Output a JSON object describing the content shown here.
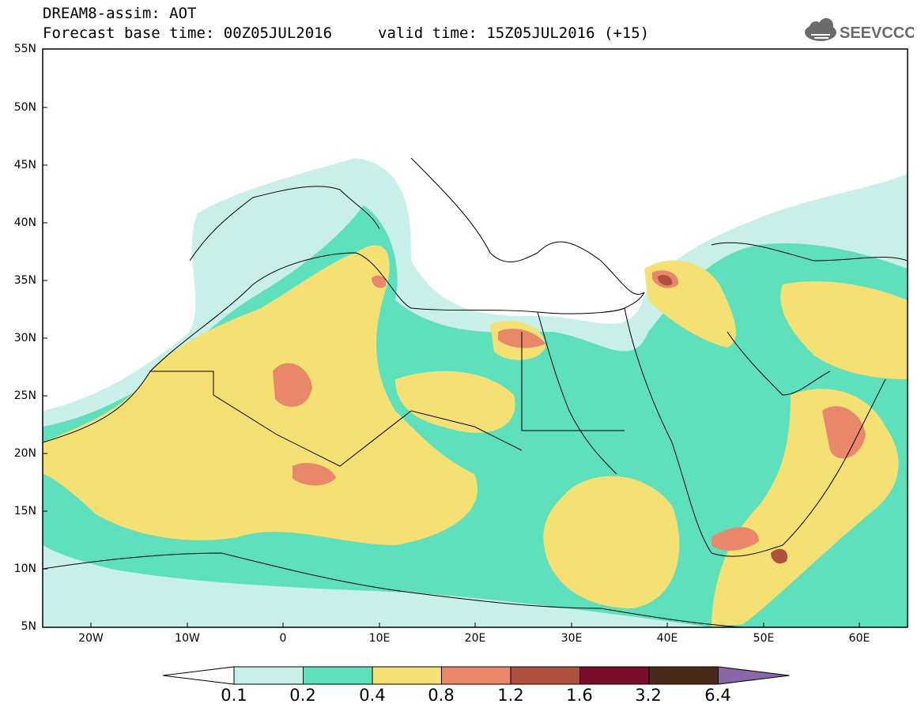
{
  "header": {
    "title": "DREAM8-assim: AOT",
    "forecast_base": "Forecast base time: 00Z05JUL2016",
    "valid_time": "valid time: 15Z05JUL2016 (+15)"
  },
  "logo": {
    "text": "SEEVCCC",
    "icon": "cloud-icon"
  },
  "lat_labels": [
    "55N",
    "50N",
    "45N",
    "40N",
    "35N",
    "30N",
    "25N",
    "20N",
    "15N",
    "10N",
    "5N"
  ],
  "lon_labels": [
    "20W",
    "10W",
    "0",
    "10E",
    "20E",
    "30E",
    "40E",
    "50E",
    "60E"
  ],
  "colorbar": {
    "levels": [
      "0.1",
      "0.2",
      "0.4",
      "0.8",
      "1.2",
      "1.6",
      "3.2",
      "6.4"
    ],
    "colors": [
      "#ffffff",
      "#c9f0e8",
      "#5fe0bd",
      "#f5e173",
      "#e8876a",
      "#b0503f",
      "#7a0e2a",
      "#4a2a1a",
      "#8a67a8"
    ]
  },
  "colors": {
    "c01": "#c9f0e8",
    "c02": "#5fe0bd",
    "c04": "#f5e173",
    "c08": "#e8876a",
    "c12": "#b0503f",
    "c16": "#7a0e2a"
  }
}
